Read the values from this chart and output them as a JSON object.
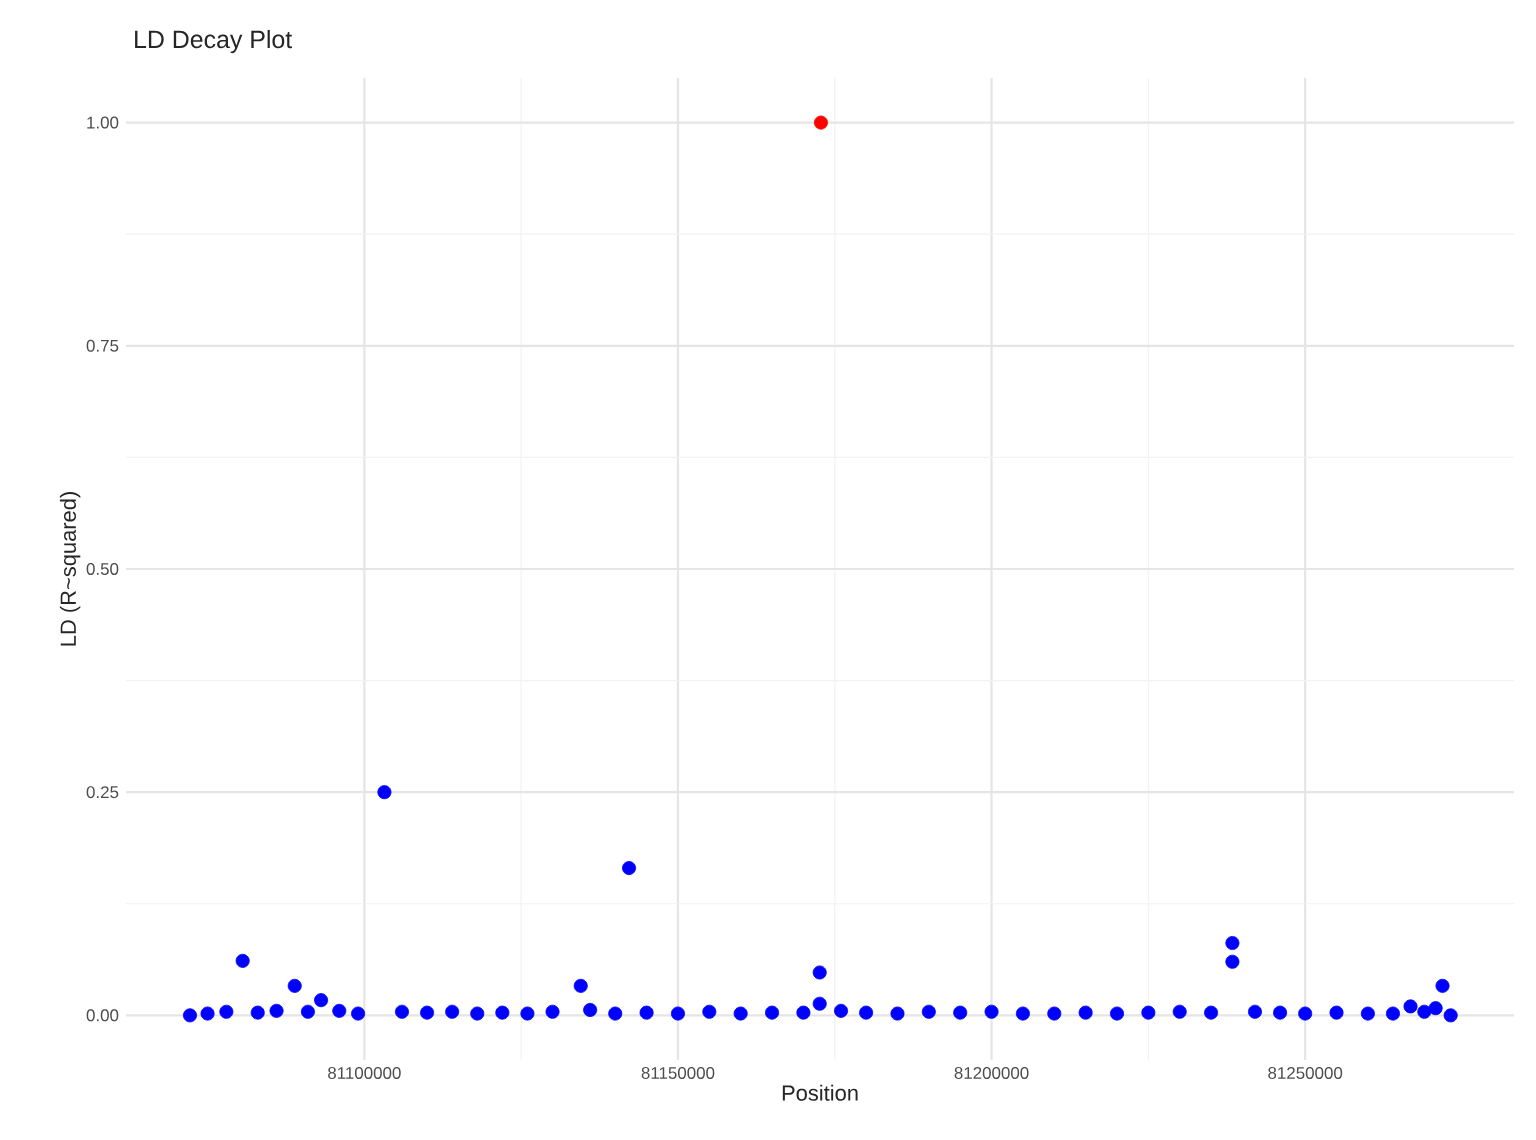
{
  "chart_data": {
    "type": "scatter",
    "title": "LD Decay Plot",
    "xlabel": "Position",
    "ylabel": "LD (R~squared)",
    "xlim": [
      81062000,
      81283300
    ],
    "ylim": [
      -0.05,
      1.05
    ],
    "xticks": [
      81100000,
      81150000,
      81200000,
      81250000
    ],
    "yticks": [
      {
        "value": 0,
        "label": "0.00"
      },
      {
        "value": 0.25,
        "label": "0.25"
      },
      {
        "value": 0.5,
        "label": "0.50"
      },
      {
        "value": 0.75,
        "label": "0.75"
      },
      {
        "value": 1,
        "label": "1.00"
      }
    ],
    "grid": true,
    "marker": "circle",
    "series": [
      {
        "color": "#0000ff",
        "x": [
          81072200,
          81075000,
          81078000,
          81080600,
          81083000,
          81086000,
          81088900,
          81091000,
          81093100,
          81096000,
          81099000,
          81103200,
          81106000,
          81110000,
          81114000,
          81118000,
          81122000,
          81126000,
          81130000,
          81134500,
          81136000,
          81140000,
          81142200,
          81145000,
          81150000,
          81155000,
          81160000,
          81165000,
          81170000,
          81172600,
          81172600,
          81176000,
          81180000,
          81185000,
          81190000,
          81195000,
          81200000,
          81205000,
          81210000,
          81215000,
          81220000,
          81225000,
          81230000,
          81235000,
          81238400,
          81238400,
          81242000,
          81246000,
          81250000,
          81255000,
          81260000,
          81264000,
          81266800,
          81269000,
          81270800,
          81271900,
          81273200
        ],
        "values": [
          0,
          0.002,
          0.004,
          0.061,
          0.003,
          0.005,
          0.033,
          0.004,
          0.017,
          0.005,
          0.002,
          0.25,
          0.004,
          0.003,
          0.004,
          0.002,
          0.003,
          0.002,
          0.004,
          0.033,
          0.006,
          0.002,
          0.165,
          0.003,
          0.002,
          0.004,
          0.002,
          0.003,
          0.003,
          0.048,
          0.013,
          0.005,
          0.003,
          0.002,
          0.004,
          0.003,
          0.004,
          0.002,
          0.002,
          0.003,
          0.002,
          0.003,
          0.004,
          0.003,
          0.081,
          0.06,
          0.004,
          0.003,
          0.002,
          0.003,
          0.002,
          0.002,
          0.01,
          0.004,
          0.008,
          0.033,
          0
        ]
      },
      {
        "color": "#ff0000",
        "x": [
          81172800
        ],
        "values": [
          1
        ]
      }
    ]
  }
}
